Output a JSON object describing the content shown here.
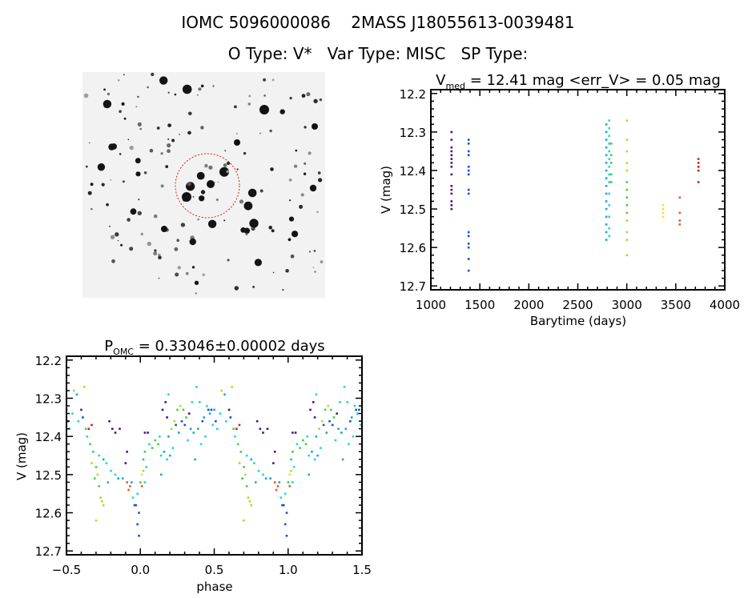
{
  "header": {
    "line1": "IOMC 5096000086    2MASS J18055613-0039481",
    "line2": "O Type: V*   Var Type: MISC   SP Type:"
  },
  "finder_image": {
    "description_icon": "star-field-image",
    "circle_color": "#d02020"
  },
  "palette": [
    "#4a1090",
    "#1a4fd0",
    "#20a0e0",
    "#20d8d0",
    "#40d040",
    "#a8e020",
    "#e8e040",
    "#e06020",
    "#d02020"
  ],
  "chart_data": [
    {
      "type": "scatter",
      "title_main": "V",
      "title_sub": "med",
      "title_rest": " = 12.41 mag <err_V> = 0.05 mag",
      "xlabel": "Barytime (days)",
      "ylabel": "V (mag)",
      "xlim": [
        1000,
        4000
      ],
      "ylim": [
        12.19,
        12.71
      ],
      "y_inverted": true,
      "xticks": [
        "1000",
        "1500",
        "2000",
        "2500",
        "3000",
        "3500",
        "4000"
      ],
      "yticks": [
        "12.2",
        "12.3",
        "12.4",
        "12.5",
        "12.6",
        "12.7"
      ],
      "points": [
        [
          1210,
          12.3,
          0
        ],
        [
          1210,
          12.32,
          0
        ],
        [
          1210,
          12.34,
          0
        ],
        [
          1210,
          12.35,
          0
        ],
        [
          1210,
          12.36,
          0
        ],
        [
          1210,
          12.37,
          0
        ],
        [
          1210,
          12.38,
          0
        ],
        [
          1210,
          12.39,
          0
        ],
        [
          1210,
          12.41,
          0
        ],
        [
          1210,
          12.44,
          0
        ],
        [
          1210,
          12.45,
          0
        ],
        [
          1210,
          12.46,
          0
        ],
        [
          1210,
          12.48,
          0
        ],
        [
          1210,
          12.49,
          0
        ],
        [
          1210,
          12.5,
          0
        ],
        [
          1385,
          12.32,
          1
        ],
        [
          1385,
          12.33,
          1
        ],
        [
          1385,
          12.35,
          1
        ],
        [
          1385,
          12.36,
          1
        ],
        [
          1385,
          12.39,
          1
        ],
        [
          1385,
          12.4,
          1
        ],
        [
          1385,
          12.41,
          1
        ],
        [
          1385,
          12.45,
          1
        ],
        [
          1385,
          12.46,
          1
        ],
        [
          1385,
          12.56,
          1
        ],
        [
          1385,
          12.57,
          1
        ],
        [
          1385,
          12.59,
          1
        ],
        [
          1385,
          12.6,
          1
        ],
        [
          1385,
          12.63,
          1
        ],
        [
          1385,
          12.66,
          1
        ],
        [
          2790,
          12.28,
          2
        ],
        [
          2790,
          12.3,
          2
        ],
        [
          2790,
          12.32,
          2
        ],
        [
          2790,
          12.34,
          2
        ],
        [
          2790,
          12.36,
          2
        ],
        [
          2790,
          12.38,
          2
        ],
        [
          2790,
          12.4,
          2
        ],
        [
          2790,
          12.42,
          2
        ],
        [
          2790,
          12.44,
          2
        ],
        [
          2790,
          12.46,
          2
        ],
        [
          2790,
          12.48,
          2
        ],
        [
          2790,
          12.5,
          2
        ],
        [
          2790,
          12.52,
          2
        ],
        [
          2790,
          12.54,
          2
        ],
        [
          2790,
          12.56,
          2
        ],
        [
          2790,
          12.58,
          2
        ],
        [
          2820,
          12.27,
          3
        ],
        [
          2820,
          12.29,
          3
        ],
        [
          2820,
          12.31,
          3
        ],
        [
          2820,
          12.33,
          3
        ],
        [
          2820,
          12.35,
          3
        ],
        [
          2820,
          12.37,
          3
        ],
        [
          2820,
          12.39,
          3
        ],
        [
          2820,
          12.41,
          3
        ],
        [
          2820,
          12.43,
          3
        ],
        [
          2820,
          12.46,
          3
        ],
        [
          2820,
          12.49,
          3
        ],
        [
          2820,
          12.52,
          3
        ],
        [
          2820,
          12.55,
          3
        ],
        [
          2820,
          12.57,
          3
        ],
        [
          2840,
          12.33,
          4
        ],
        [
          2840,
          12.36,
          4
        ],
        [
          2840,
          12.38,
          4
        ],
        [
          2840,
          12.41,
          4
        ],
        [
          2840,
          12.43,
          4
        ],
        [
          3000,
          12.27,
          5
        ],
        [
          3000,
          12.32,
          5
        ],
        [
          3000,
          12.35,
          5
        ],
        [
          3000,
          12.38,
          5
        ],
        [
          3000,
          12.4,
          5
        ],
        [
          3000,
          12.43,
          4
        ],
        [
          3000,
          12.45,
          4
        ],
        [
          3000,
          12.47,
          4
        ],
        [
          3000,
          12.49,
          4
        ],
        [
          3000,
          12.51,
          4
        ],
        [
          3000,
          12.53,
          5
        ],
        [
          3000,
          12.56,
          5
        ],
        [
          3000,
          12.58,
          5
        ],
        [
          3000,
          12.62,
          5
        ],
        [
          3370,
          12.49,
          6
        ],
        [
          3370,
          12.5,
          6
        ],
        [
          3370,
          12.51,
          6
        ],
        [
          3370,
          12.52,
          6
        ],
        [
          3540,
          12.47,
          7
        ],
        [
          3540,
          12.51,
          7
        ],
        [
          3540,
          12.53,
          7
        ],
        [
          3540,
          12.54,
          7
        ],
        [
          3730,
          12.37,
          8
        ],
        [
          3730,
          12.38,
          8
        ],
        [
          3730,
          12.39,
          8
        ],
        [
          3730,
          12.4,
          8
        ],
        [
          3730,
          12.43,
          8
        ]
      ]
    },
    {
      "type": "scatter",
      "title_main": "P",
      "title_sub": "OMC",
      "title_rest": " = 0.33046±0.00002 days",
      "xlabel": "phase",
      "ylabel": "V (mag)",
      "xlim": [
        -0.5,
        1.5
      ],
      "ylim": [
        12.19,
        12.71
      ],
      "y_inverted": true,
      "xticks": [
        "-0.5",
        "0.0",
        "0.5",
        "1.0",
        "1.5"
      ],
      "yticks": [
        "12.2",
        "12.3",
        "12.4",
        "12.5",
        "12.6",
        "12.7"
      ],
      "points": [
        [
          -0.5,
          12.33,
          2
        ],
        [
          -0.49,
          12.36,
          1
        ],
        [
          -0.48,
          12.38,
          3
        ],
        [
          -0.46,
          12.34,
          3
        ],
        [
          -0.45,
          12.28,
          5
        ],
        [
          -0.43,
          12.29,
          2
        ],
        [
          -0.42,
          12.36,
          3
        ],
        [
          -0.4,
          12.33,
          0
        ],
        [
          -0.39,
          12.35,
          1
        ],
        [
          -0.38,
          12.27,
          5
        ],
        [
          -0.37,
          12.38,
          4
        ],
        [
          -0.36,
          12.4,
          3
        ],
        [
          -0.35,
          12.38,
          8
        ],
        [
          -0.33,
          12.37,
          8
        ],
        [
          -0.34,
          12.42,
          4
        ],
        [
          -0.32,
          12.44,
          4
        ],
        [
          -0.33,
          12.47,
          5
        ],
        [
          -0.3,
          12.48,
          4
        ],
        [
          -0.31,
          12.51,
          4
        ],
        [
          -0.29,
          12.5,
          5
        ],
        [
          -0.28,
          12.53,
          4
        ],
        [
          -0.27,
          12.56,
          5
        ],
        [
          -0.26,
          12.57,
          5
        ],
        [
          -0.3,
          12.62,
          5
        ],
        [
          -0.25,
          12.58,
          5
        ],
        [
          -0.28,
          12.45,
          3
        ],
        [
          -0.25,
          12.46,
          2
        ],
        [
          -0.23,
          12.47,
          3
        ],
        [
          -0.2,
          12.49,
          3
        ],
        [
          -0.22,
          12.52,
          2
        ],
        [
          -0.17,
          12.5,
          3
        ],
        [
          -0.15,
          12.51,
          2
        ],
        [
          -0.21,
          12.36,
          0
        ],
        [
          -0.19,
          12.38,
          0
        ],
        [
          -0.17,
          12.39,
          0
        ],
        [
          -0.14,
          12.38,
          0
        ],
        [
          -0.1,
          12.47,
          0
        ],
        [
          -0.09,
          12.44,
          0
        ],
        [
          -0.12,
          12.51,
          2
        ],
        [
          -0.09,
          12.52,
          7
        ],
        [
          -0.08,
          12.54,
          7
        ],
        [
          -0.07,
          12.53,
          7
        ],
        [
          -0.06,
          12.52,
          2
        ],
        [
          -0.05,
          12.56,
          3
        ],
        [
          -0.04,
          12.58,
          1
        ],
        [
          -0.03,
          12.58,
          1
        ],
        [
          -0.02,
          12.63,
          1
        ],
        [
          -0.01,
          12.6,
          1
        ],
        [
          -0.01,
          12.66,
          1
        ],
        [
          -0.02,
          12.55,
          3
        ],
        [
          0.0,
          12.52,
          4
        ],
        [
          0.01,
          12.5,
          6
        ],
        [
          0.02,
          12.49,
          5
        ],
        [
          0.02,
          12.46,
          4
        ],
        [
          0.03,
          12.44,
          4
        ],
        [
          0.03,
          12.39,
          0
        ],
        [
          0.05,
          12.39,
          0
        ],
        [
          0.01,
          12.53,
          7
        ],
        [
          0.03,
          12.52,
          3
        ],
        [
          0.04,
          12.48,
          3
        ],
        [
          0.06,
          12.42,
          3
        ],
        [
          0.08,
          12.43,
          4
        ],
        [
          0.1,
          12.41,
          4
        ],
        [
          0.12,
          12.42,
          4
        ],
        [
          0.13,
          12.4,
          3
        ],
        [
          0.14,
          12.45,
          3
        ],
        [
          0.16,
          12.44,
          2
        ],
        [
          0.18,
          12.46,
          3
        ],
        [
          0.19,
          12.4,
          2
        ],
        [
          0.2,
          12.45,
          2
        ],
        [
          0.22,
          12.43,
          3
        ],
        [
          0.14,
          12.5,
          2
        ],
        [
          0.15,
          12.33,
          0
        ],
        [
          0.17,
          12.31,
          0
        ],
        [
          0.18,
          12.35,
          0
        ],
        [
          0.19,
          12.29,
          3
        ],
        [
          0.21,
          12.38,
          5
        ],
        [
          0.23,
          12.36,
          5
        ],
        [
          0.25,
          12.33,
          4
        ],
        [
          0.27,
          12.32,
          5
        ],
        [
          0.29,
          12.33,
          4
        ],
        [
          0.31,
          12.35,
          4
        ],
        [
          0.32,
          12.41,
          3
        ],
        [
          0.34,
          12.38,
          2
        ],
        [
          0.36,
          12.39,
          2
        ],
        [
          0.37,
          12.46,
          2
        ],
        [
          0.38,
          12.27,
          3
        ],
        [
          0.24,
          12.37,
          1
        ],
        [
          0.26,
          12.39,
          2
        ],
        [
          0.28,
          12.36,
          1
        ],
        [
          0.3,
          12.37,
          1
        ],
        [
          0.33,
          12.34,
          0
        ],
        [
          0.35,
          12.31,
          3
        ],
        [
          0.39,
          12.38,
          2
        ],
        [
          0.4,
          12.31,
          3
        ],
        [
          0.41,
          12.42,
          3
        ],
        [
          0.42,
          12.36,
          1
        ],
        [
          0.43,
          12.35,
          2
        ],
        [
          0.45,
          12.32,
          3
        ],
        [
          0.46,
          12.33,
          1
        ],
        [
          0.48,
          12.33,
          1
        ],
        [
          0.49,
          12.37,
          3
        ],
        [
          0.44,
          12.4,
          3
        ],
        [
          0.47,
          12.34,
          2
        ]
      ]
    }
  ]
}
